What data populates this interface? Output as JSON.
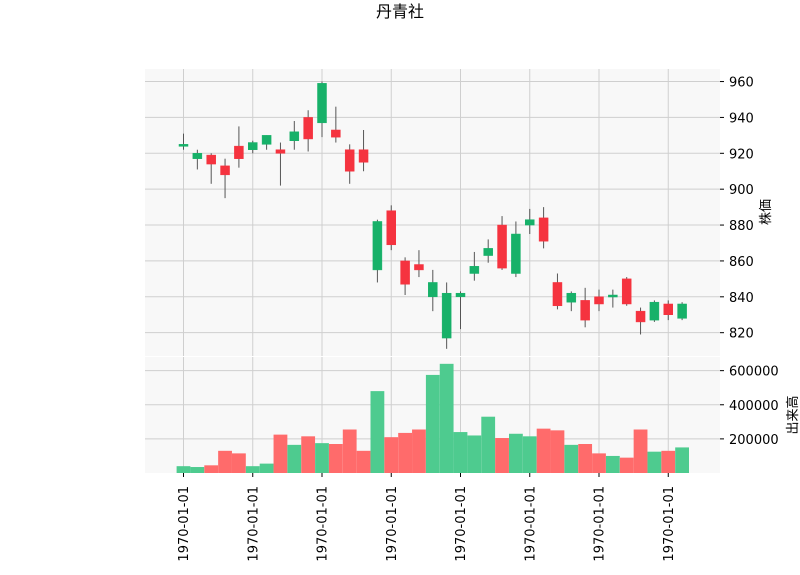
{
  "chart_data": {
    "type": "candlestick",
    "title": "丹青社",
    "price_axis": {
      "ylabel": "株価",
      "ylim": [
        807,
        967
      ],
      "ticks": [
        820,
        840,
        860,
        880,
        900,
        920,
        940,
        960
      ]
    },
    "volume_axis": {
      "ylabel": "出来高",
      "ylim": [
        0,
        680000
      ],
      "ticks": [
        200000,
        400000,
        600000
      ],
      "tick_labels": [
        "200000",
        "400000",
        "600000"
      ]
    },
    "x_tick_labels": [
      "1970-01-01",
      "1970-01-01",
      "1970-01-01",
      "1970-01-01",
      "1970-01-01",
      "1970-01-01",
      "1970-01-01",
      "1970-01-01"
    ],
    "x_tick_positions": [
      0,
      5,
      10,
      15,
      20,
      25,
      30,
      35
    ],
    "grid": true,
    "colors": {
      "up": "#17b169",
      "down": "#f5333f",
      "up_volume": "#4ecb8f",
      "down_volume": "#ff6b6b",
      "wick": "#555555"
    },
    "candles": [
      {
        "o": 924,
        "h": 931,
        "l": 922,
        "c": 925,
        "v": 40000
      },
      {
        "o": 917,
        "h": 922,
        "l": 911,
        "c": 920,
        "v": 35000
      },
      {
        "o": 919,
        "h": 920,
        "l": 903,
        "c": 914,
        "v": 45000
      },
      {
        "o": 913,
        "h": 917,
        "l": 895,
        "c": 908,
        "v": 130000
      },
      {
        "o": 924,
        "h": 935,
        "l": 912,
        "c": 917,
        "v": 115000
      },
      {
        "o": 922,
        "h": 927,
        "l": 920,
        "c": 926,
        "v": 40000
      },
      {
        "o": 925,
        "h": 930,
        "l": 922,
        "c": 930,
        "v": 55000
      },
      {
        "o": 922,
        "h": 926,
        "l": 902,
        "c": 920,
        "v": 225000
      },
      {
        "o": 927,
        "h": 938,
        "l": 922,
        "c": 932,
        "v": 165000
      },
      {
        "o": 940,
        "h": 944,
        "l": 921,
        "c": 928,
        "v": 215000
      },
      {
        "o": 937,
        "h": 960,
        "l": 929,
        "c": 959,
        "v": 175000
      },
      {
        "o": 933,
        "h": 946,
        "l": 926,
        "c": 929,
        "v": 170000
      },
      {
        "o": 922,
        "h": 925,
        "l": 903,
        "c": 910,
        "v": 255000
      },
      {
        "o": 922,
        "h": 933,
        "l": 910,
        "c": 915,
        "v": 130000
      },
      {
        "o": 855,
        "h": 883,
        "l": 848,
        "c": 882,
        "v": 480000
      },
      {
        "o": 888,
        "h": 891,
        "l": 866,
        "c": 869,
        "v": 210000
      },
      {
        "o": 860,
        "h": 862,
        "l": 841,
        "c": 847,
        "v": 235000
      },
      {
        "o": 858,
        "h": 866,
        "l": 851,
        "c": 855,
        "v": 255000
      },
      {
        "o": 840,
        "h": 855,
        "l": 832,
        "c": 848,
        "v": 575000
      },
      {
        "o": 817,
        "h": 848,
        "l": 811,
        "c": 842,
        "v": 640000
      },
      {
        "o": 840,
        "h": 843,
        "l": 822,
        "c": 842,
        "v": 240000
      },
      {
        "o": 853,
        "h": 865,
        "l": 849,
        "c": 857,
        "v": 220000
      },
      {
        "o": 863,
        "h": 872,
        "l": 859,
        "c": 867,
        "v": 330000
      },
      {
        "o": 880,
        "h": 885,
        "l": 855,
        "c": 856,
        "v": 205000
      },
      {
        "o": 853,
        "h": 882,
        "l": 851,
        "c": 875,
        "v": 230000
      },
      {
        "o": 880,
        "h": 889,
        "l": 875,
        "c": 883,
        "v": 215000
      },
      {
        "o": 884,
        "h": 890,
        "l": 867,
        "c": 871,
        "v": 260000
      },
      {
        "o": 848,
        "h": 853,
        "l": 833,
        "c": 835,
        "v": 250000
      },
      {
        "o": 837,
        "h": 843,
        "l": 832,
        "c": 842,
        "v": 165000
      },
      {
        "o": 838,
        "h": 845,
        "l": 823,
        "c": 827,
        "v": 170000
      },
      {
        "o": 840,
        "h": 844,
        "l": 832,
        "c": 836,
        "v": 115000
      },
      {
        "o": 840,
        "h": 844,
        "l": 834,
        "c": 841,
        "v": 100000
      },
      {
        "o": 850,
        "h": 851,
        "l": 835,
        "c": 836,
        "v": 90000
      },
      {
        "o": 832,
        "h": 834,
        "l": 819,
        "c": 826,
        "v": 255000
      },
      {
        "o": 827,
        "h": 838,
        "l": 826,
        "c": 837,
        "v": 125000
      },
      {
        "o": 836,
        "h": 838,
        "l": 827,
        "c": 830,
        "v": 130000
      },
      {
        "o": 828,
        "h": 837,
        "l": 827,
        "c": 836,
        "v": 150000
      }
    ]
  }
}
